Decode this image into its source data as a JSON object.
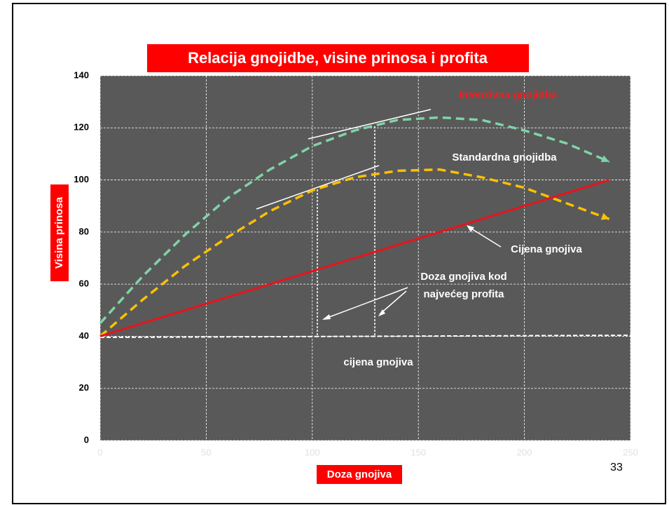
{
  "chart_data": {
    "type": "line",
    "title": "Relacija gnojidbe, visine prinosa i profita",
    "xlabel": "Doza gnojiva",
    "ylabel": "Visina prinosa",
    "x": [
      0,
      20,
      40,
      60,
      80,
      100,
      120,
      140,
      160,
      180,
      200,
      220,
      240
    ],
    "series": [
      {
        "name": "Intenzivna gnojidba",
        "color": "#7fd4a8",
        "line_style": "dashed",
        "values": [
          45,
          63,
          79,
          93,
          104,
          113,
          119,
          123,
          124,
          123,
          119,
          114,
          107
        ]
      },
      {
        "name": "Standardna gnojidba",
        "color": "#ffc000",
        "line_style": "dashed",
        "values": [
          40,
          54,
          67,
          78,
          88,
          96,
          101,
          103.5,
          104,
          101,
          97,
          91,
          85
        ]
      },
      {
        "name": "Cijena gnojiva",
        "color": "#e8141a",
        "line_style": "solid",
        "values": [
          40,
          45,
          50,
          55,
          60,
          65,
          70,
          75,
          80,
          85,
          90,
          95,
          100
        ]
      }
    ],
    "annotations": [
      "Doza gnojiva kod",
      "najvećeg profita",
      "cijena gnojiva"
    ],
    "xlim": [
      0,
      250
    ],
    "xticks": [
      0,
      50,
      100,
      150,
      200,
      250
    ],
    "ylim": [
      0,
      140
    ],
    "yticks": [
      0,
      20,
      40,
      60,
      80,
      100,
      120,
      140
    ],
    "grid": true,
    "page_number": "33"
  }
}
